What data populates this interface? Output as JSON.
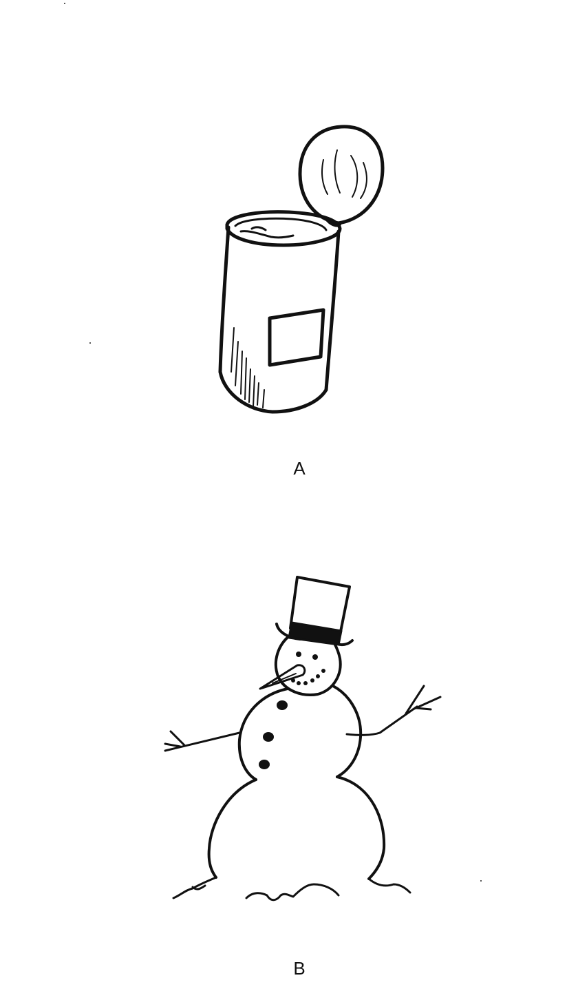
{
  "figures": [
    {
      "id": "can",
      "caption": "A"
    },
    {
      "id": "snowman",
      "caption": "B"
    }
  ],
  "colors": {
    "ink": "#111111",
    "paper": "#ffffff"
  },
  "icons": [
    "open-can-icon",
    "snowman-icon"
  ]
}
